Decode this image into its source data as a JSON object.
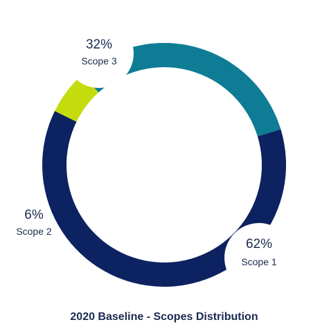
{
  "chart_data": {
    "type": "pie",
    "title": "2020 Baseline - Scopes Distribution",
    "slices": [
      {
        "name": "Scope 1",
        "value": 62,
        "label": "62%",
        "color": "#0d2260"
      },
      {
        "name": "Scope 2",
        "value": 6,
        "label": "6%",
        "color": "#c4dc0b"
      },
      {
        "name": "Scope 3",
        "value": 32,
        "label": "32%",
        "color": "#0e7c95"
      }
    ]
  }
}
